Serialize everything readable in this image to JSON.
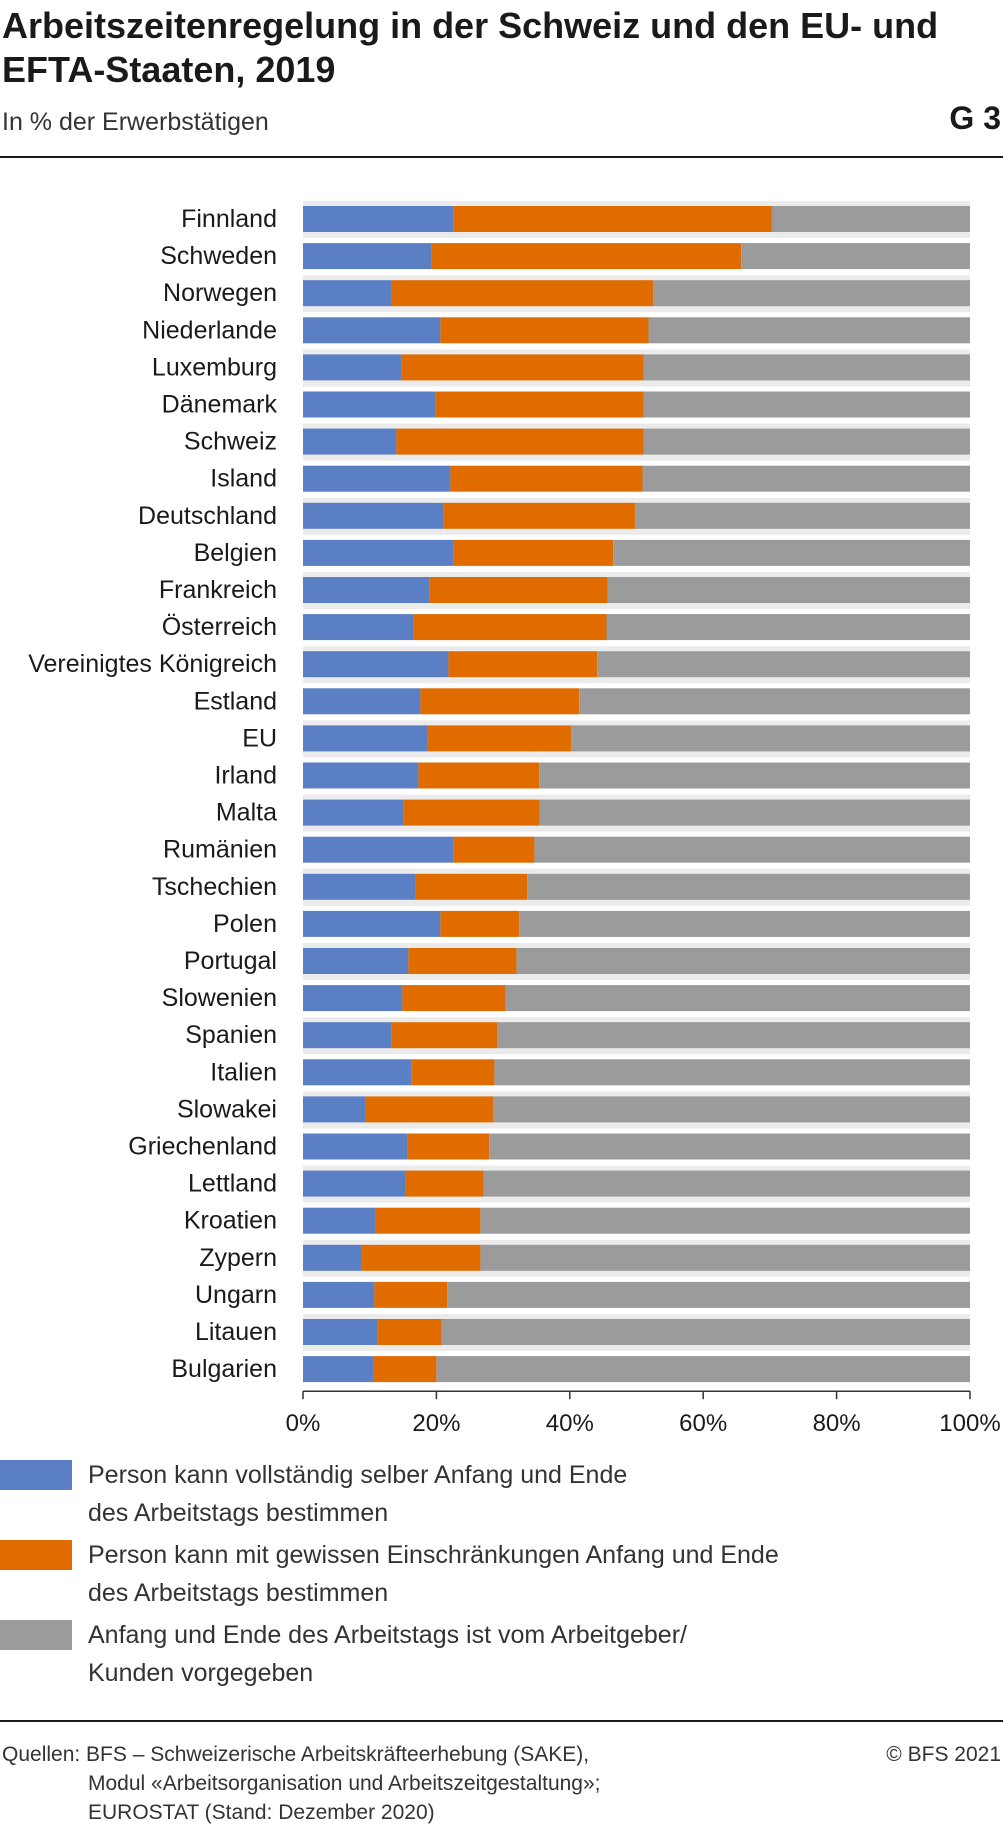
{
  "header": {
    "title": "Arbeitszeitenregelung in der Schweiz und den EU- und EFTA-Staaten, 2019",
    "subtitle": "In % der Erwerbstätigen",
    "code": "G 3"
  },
  "colors": {
    "series1": "#5b7fc4",
    "series2": "#e06c00",
    "series3": "#9b9b9b",
    "row_band": "#ebebeb",
    "axis": "#333333"
  },
  "chart_data": {
    "type": "bar",
    "orientation": "horizontal",
    "stacked": "percent",
    "categories": [
      "Finnland",
      "Schweden",
      "Norwegen",
      "Niederlande",
      "Luxemburg",
      "Dänemark",
      "Schweiz",
      "Island",
      "Deutschland",
      "Belgien",
      "Frankreich",
      "Österreich",
      "Vereinigtes Königreich",
      "Estland",
      "EU",
      "Irland",
      "Malta",
      "Rumänien",
      "Tschechien",
      "Polen",
      "Portugal",
      "Slowenien",
      "Spanien",
      "Italien",
      "Slowakei",
      "Griechenland",
      "Lettland",
      "Kroatien",
      "Zypern",
      "Ungarn",
      "Litauen",
      "Bulgarien"
    ],
    "series": [
      {
        "name": "Person kann vollständig selber Anfang und Ende des Arbeitstags bestimmen",
        "values": [
          22.5,
          19.2,
          13.2,
          20.6,
          14.8,
          19.8,
          14.0,
          22.1,
          21.1,
          22.5,
          19.0,
          16.5,
          21.8,
          17.6,
          18.6,
          17.3,
          15.1,
          22.5,
          16.8,
          20.6,
          15.8,
          14.9,
          13.3,
          16.3,
          9.3,
          15.6,
          15.3,
          10.8,
          8.7,
          10.7,
          11.2,
          10.5
        ]
      },
      {
        "name": "Person kann mit gewissen Einschränkungen Anfang und Ende des Arbeitstags bestimmen",
        "values": [
          47.8,
          46.5,
          39.3,
          31.2,
          36.3,
          31.3,
          37.1,
          28.8,
          28.7,
          24.0,
          26.7,
          29.0,
          22.3,
          23.8,
          21.6,
          18.1,
          20.4,
          12.2,
          16.8,
          11.8,
          16.2,
          15.5,
          15.8,
          12.4,
          19.2,
          12.3,
          11.8,
          15.8,
          17.9,
          10.9,
          9.6,
          9.5
        ]
      },
      {
        "name": "Anfang und Ende des Arbeitstags ist vom Arbeitgeber/ Kunden vorgegeben",
        "values": [
          29.7,
          34.3,
          47.5,
          48.2,
          48.9,
          48.9,
          48.9,
          49.1,
          50.2,
          53.5,
          54.3,
          54.5,
          55.9,
          58.6,
          59.8,
          64.6,
          64.5,
          65.3,
          66.4,
          67.6,
          68.0,
          69.6,
          70.9,
          71.3,
          71.5,
          72.1,
          72.9,
          73.4,
          73.4,
          78.4,
          79.2,
          80.0
        ]
      }
    ],
    "xlim": [
      0,
      100
    ],
    "xticks": [
      "0%",
      "20%",
      "40%",
      "60%",
      "80%",
      "100%"
    ],
    "legend_position": "bottom"
  },
  "legend": [
    {
      "line1": "Person kann vollständig selber Anfang und Ende",
      "line2": "des Arbeitstags bestimmen"
    },
    {
      "line1": "Person kann mit gewissen Einschränkungen Anfang und Ende",
      "line2": "des Arbeitstags bestimmen"
    },
    {
      "line1": "Anfang und Ende des Arbeitstags ist vom Arbeitgeber/",
      "line2": "Kunden vorgegeben"
    }
  ],
  "footer": {
    "source_line1": "Quellen: BFS – Schweizerische Arbeitskräfteerhebung (SAKE),",
    "source_line2": "Modul «Arbeitsorganisation und Arbeitszeitgestaltung»;",
    "source_line3": "EUROSTAT (Stand: Dezember 2020)",
    "copyright": "© BFS 2021"
  }
}
